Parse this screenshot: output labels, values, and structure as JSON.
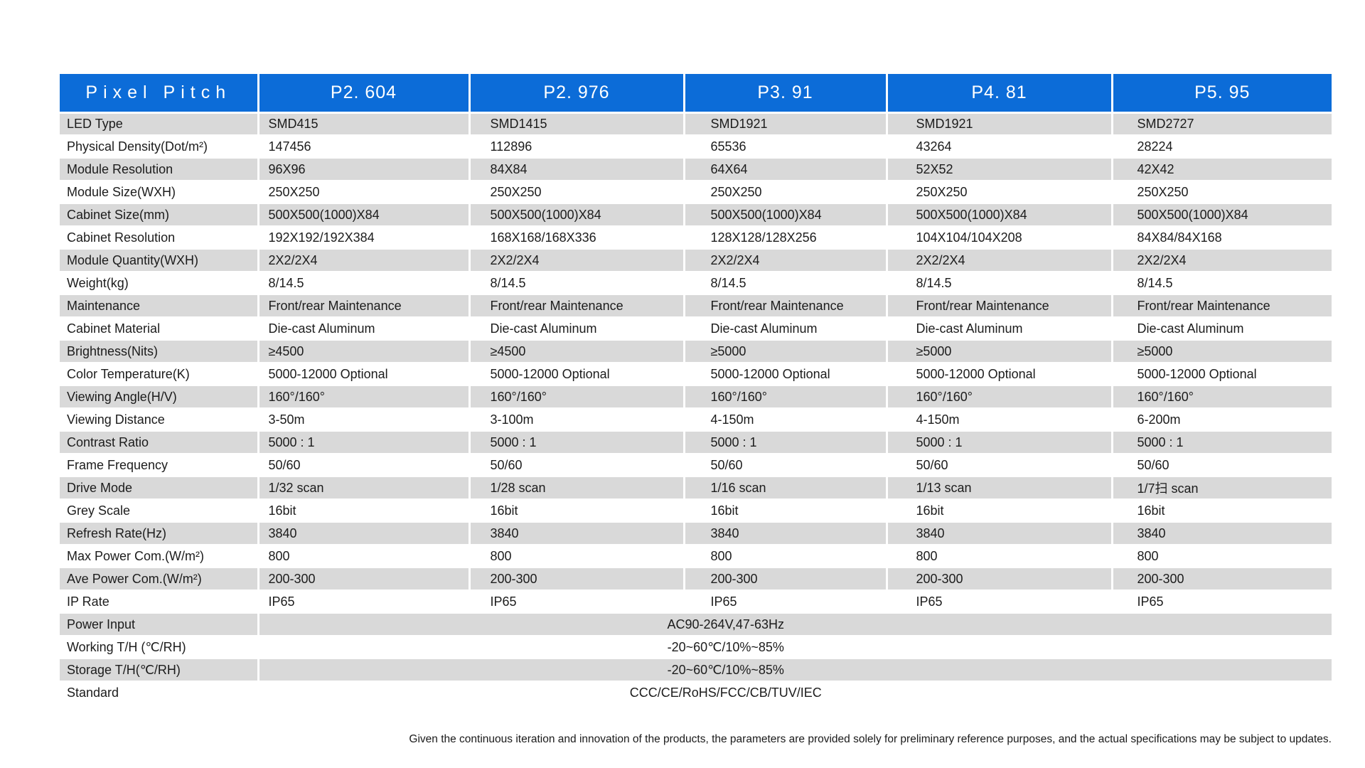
{
  "colors": {
    "header_blue": "#0c6cd8",
    "stripe_gray": "#d9d9d9"
  },
  "table": {
    "columns": [
      "Pixel Pitch",
      "P2. 604",
      "P2. 976",
      "P3. 91",
      "P4. 81",
      "P5. 95"
    ],
    "rows": [
      {
        "label": "LED Type",
        "values": [
          "SMD415",
          "SMD1415",
          "SMD1921",
          "SMD1921",
          "SMD2727"
        ]
      },
      {
        "label": "Physical Density(Dot/m²)",
        "values": [
          "147456",
          "112896",
          "65536",
          "43264",
          "28224"
        ]
      },
      {
        "label": "Module Resolution",
        "values": [
          "96X96",
          "84X84",
          "64X64",
          "52X52",
          "42X42"
        ]
      },
      {
        "label": "Module Size(WXH)",
        "values": [
          "250X250",
          "250X250",
          "250X250",
          "250X250",
          "250X250"
        ]
      },
      {
        "label": "Cabinet Size(mm)",
        "values": [
          "500X500(1000)X84",
          "500X500(1000)X84",
          "500X500(1000)X84",
          "500X500(1000)X84",
          "500X500(1000)X84"
        ]
      },
      {
        "label": "Cabinet Resolution",
        "values": [
          "192X192/192X384",
          "168X168/168X336",
          "128X128/128X256",
          "104X104/104X208",
          "84X84/84X168"
        ]
      },
      {
        "label": "Module Quantity(WXH)",
        "values": [
          "2X2/2X4",
          "2X2/2X4",
          "2X2/2X4",
          "2X2/2X4",
          "2X2/2X4"
        ]
      },
      {
        "label": "Weight(kg)",
        "values": [
          "8/14.5",
          "8/14.5",
          "8/14.5",
          "8/14.5",
          "8/14.5"
        ]
      },
      {
        "label": "Maintenance",
        "values": [
          "Front/rear Maintenance",
          "Front/rear Maintenance",
          "Front/rear Maintenance",
          "Front/rear Maintenance",
          "Front/rear Maintenance"
        ]
      },
      {
        "label": "Cabinet Material",
        "values": [
          "Die-cast Aluminum",
          "Die-cast Aluminum",
          "Die-cast Aluminum",
          "Die-cast Aluminum",
          "Die-cast Aluminum"
        ]
      },
      {
        "label": "Brightness(Nits)",
        "values": [
          "≥4500",
          "≥4500",
          "≥5000",
          "≥5000",
          "≥5000"
        ]
      },
      {
        "label": "Color Temperature(K)",
        "values": [
          "5000-12000 Optional",
          "5000-12000 Optional",
          "5000-12000 Optional",
          "5000-12000 Optional",
          "5000-12000 Optional"
        ]
      },
      {
        "label": "Viewing Angle(H/V)",
        "values": [
          "160°/160°",
          "160°/160°",
          "160°/160°",
          "160°/160°",
          "160°/160°"
        ]
      },
      {
        "label": "Viewing Distance",
        "values": [
          "3-50m",
          "3-100m",
          "4-150m",
          "4-150m",
          "6-200m"
        ]
      },
      {
        "label": "Contrast Ratio",
        "values": [
          "5000 : 1",
          "5000 : 1",
          "5000 : 1",
          "5000 : 1",
          "5000 : 1"
        ]
      },
      {
        "label": "Frame Frequency",
        "values": [
          "50/60",
          "50/60",
          "50/60",
          "50/60",
          "50/60"
        ]
      },
      {
        "label": "Drive Mode",
        "values": [
          "1/32 scan",
          "1/28 scan",
          "1/16 scan",
          "1/13 scan",
          "1/7扫 scan"
        ]
      },
      {
        "label": "Grey Scale",
        "values": [
          "16bit",
          "16bit",
          "16bit",
          "16bit",
          "16bit"
        ]
      },
      {
        "label": "Refresh Rate(Hz)",
        "values": [
          "3840",
          "3840",
          "3840",
          "3840",
          "3840"
        ]
      },
      {
        "label": "Max Power Com.(W/m²)",
        "values": [
          "800",
          "800",
          "800",
          "800",
          "800"
        ]
      },
      {
        "label": "Ave Power Com.(W/m²)",
        "values": [
          "200-300",
          "200-300",
          "200-300",
          "200-300",
          "200-300"
        ]
      },
      {
        "label": "IP Rate",
        "values": [
          "IP65",
          "IP65",
          "IP65",
          "IP65",
          "IP65"
        ]
      },
      {
        "label": "Power Input",
        "span": "AC90-264V,47-63Hz"
      },
      {
        "label": "Working T/H (℃/RH)",
        "span": "-20~60℃/10%~85%"
      },
      {
        "label": "Storage T/H(℃/RH)",
        "span": "-20~60℃/10%~85%"
      },
      {
        "label": "Standard",
        "span": "CCC/CE/RoHS/FCC/CB/TUV/IEC"
      }
    ]
  },
  "footer": {
    "note": "Given the continuous iteration and innovation of the products, the parameters are provided solely for preliminary reference purposes, and the actual specifications may be subject to updates."
  }
}
